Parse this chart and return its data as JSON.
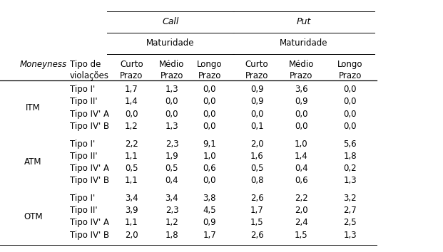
{
  "col_header_1": "Call",
  "col_header_2": "Put",
  "sub_header": "Maturidade",
  "moneyness_label": "Moneyness",
  "tipo_label1": "Tipo de",
  "tipo_label2": "violações",
  "col_label_texts": [
    "Curto",
    "Médio",
    "Longo",
    "Curto",
    "Médio",
    "Longo"
  ],
  "prazo": "Prazo",
  "moneyness_groups": [
    "ITM",
    "ATM",
    "OTM"
  ],
  "row_labels": [
    [
      "Tipo I'",
      "Tipo II'",
      "Tipo IV' A",
      "Tipo IV' B"
    ],
    [
      "Tipo I'",
      "Tipo II'",
      "Tipo IV' A",
      "Tipo IV' B"
    ],
    [
      "Tipo I'",
      "Tipo II'",
      "Tipo IV' A",
      "Tipo IV' B"
    ]
  ],
  "data": [
    [
      [
        "1,7",
        "1,3",
        "0,0",
        "0,9",
        "3,6",
        "0,0"
      ],
      [
        "1,4",
        "0,0",
        "0,0",
        "0,9",
        "0,9",
        "0,0"
      ],
      [
        "0,0",
        "0,0",
        "0,0",
        "0,0",
        "0,0",
        "0,0"
      ],
      [
        "1,2",
        "1,3",
        "0,0",
        "0,1",
        "0,0",
        "0,0"
      ]
    ],
    [
      [
        "2,2",
        "2,3",
        "9,1",
        "2,0",
        "1,0",
        "5,6"
      ],
      [
        "1,1",
        "1,9",
        "1,0",
        "1,6",
        "1,4",
        "1,8"
      ],
      [
        "0,5",
        "0,5",
        "0,6",
        "0,5",
        "0,4",
        "0,2"
      ],
      [
        "1,1",
        "0,4",
        "0,0",
        "0,8",
        "0,6",
        "1,3"
      ]
    ],
    [
      [
        "3,4",
        "3,4",
        "3,8",
        "2,6",
        "2,2",
        "3,2"
      ],
      [
        "3,9",
        "2,3",
        "4,5",
        "1,7",
        "2,0",
        "2,7"
      ],
      [
        "1,1",
        "1,2",
        "0,9",
        "1,5",
        "2,4",
        "2,5"
      ],
      [
        "2,0",
        "1,8",
        "1,7",
        "2,6",
        "1,5",
        "1,3"
      ]
    ]
  ],
  "bg_color": "#ffffff",
  "text_color": "#000000",
  "font_size": 8.5,
  "header_font_size": 8.5
}
